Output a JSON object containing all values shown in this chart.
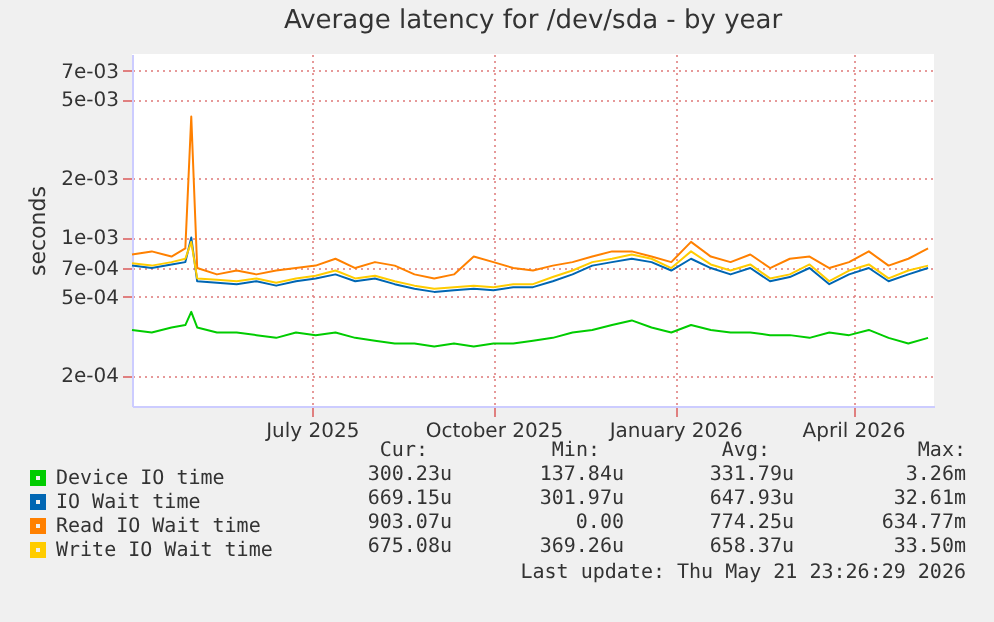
{
  "chart_data": {
    "type": "line",
    "title": "Average latency for /dev/sda - by year",
    "ylabel": "seconds",
    "x": [
      "2025-04-01",
      "2025-04-11",
      "2025-04-21",
      "2025-04-28",
      "2025-05-01",
      "2025-05-04",
      "2025-05-14",
      "2025-05-24",
      "2025-06-03",
      "2025-06-13",
      "2025-06-23",
      "2025-07-03",
      "2025-07-13",
      "2025-07-23",
      "2025-08-02",
      "2025-08-12",
      "2025-08-22",
      "2025-09-01",
      "2025-09-11",
      "2025-09-21",
      "2025-10-01",
      "2025-10-11",
      "2025-10-21",
      "2025-10-31",
      "2025-11-10",
      "2025-11-20",
      "2025-11-30",
      "2025-12-10",
      "2025-12-20",
      "2025-12-30",
      "2026-01-09",
      "2026-01-19",
      "2026-01-29",
      "2026-02-08",
      "2026-02-18",
      "2026-02-28",
      "2026-03-10",
      "2026-03-20",
      "2026-03-30",
      "2026-04-09",
      "2026-04-19",
      "2026-04-29",
      "2026-05-09"
    ],
    "series": [
      {
        "name": "Device IO time",
        "color": "#00cc00",
        "values": [
          0.00034,
          0.00033,
          0.00035,
          0.00036,
          0.00042,
          0.00035,
          0.00033,
          0.00033,
          0.00032,
          0.00031,
          0.00033,
          0.00032,
          0.00033,
          0.00031,
          0.0003,
          0.00029,
          0.00029,
          0.00028,
          0.00029,
          0.00028,
          0.00029,
          0.00029,
          0.0003,
          0.00031,
          0.00033,
          0.00034,
          0.00036,
          0.00038,
          0.00035,
          0.00033,
          0.00036,
          0.00034,
          0.00033,
          0.00033,
          0.00032,
          0.00032,
          0.00031,
          0.00033,
          0.00032,
          0.00034,
          0.00031,
          0.00029,
          0.00031
        ]
      },
      {
        "name": "IO Wait time",
        "color": "#0066b3",
        "values": [
          0.00072,
          0.0007,
          0.00073,
          0.00075,
          0.001,
          0.0006,
          0.00059,
          0.00058,
          0.0006,
          0.00057,
          0.0006,
          0.00062,
          0.00065,
          0.0006,
          0.00062,
          0.00058,
          0.00055,
          0.00053,
          0.00054,
          0.00055,
          0.00054,
          0.00056,
          0.00056,
          0.0006,
          0.00065,
          0.00072,
          0.00075,
          0.00078,
          0.00075,
          0.00068,
          0.00078,
          0.0007,
          0.00065,
          0.0007,
          0.0006,
          0.00063,
          0.0007,
          0.00058,
          0.00065,
          0.0007,
          0.0006,
          0.00065,
          0.0007
        ]
      },
      {
        "name": "Read IO Wait time",
        "color": "#ff8000",
        "values": [
          0.00082,
          0.00085,
          0.0008,
          0.00088,
          0.0041,
          0.0007,
          0.00065,
          0.00068,
          0.00065,
          0.00068,
          0.0007,
          0.00072,
          0.00078,
          0.0007,
          0.00075,
          0.00072,
          0.00065,
          0.00062,
          0.00065,
          0.0008,
          0.00075,
          0.0007,
          0.00068,
          0.00072,
          0.00075,
          0.0008,
          0.00085,
          0.00085,
          0.0008,
          0.00075,
          0.00095,
          0.0008,
          0.00075,
          0.00082,
          0.0007,
          0.00078,
          0.0008,
          0.0007,
          0.00075,
          0.00085,
          0.00072,
          0.00078,
          0.00088
        ]
      },
      {
        "name": "Write IO Wait time",
        "color": "#ffcc00",
        "values": [
          0.00074,
          0.00072,
          0.00075,
          0.00078,
          0.00095,
          0.00062,
          0.00061,
          0.0006,
          0.00062,
          0.00059,
          0.00062,
          0.00064,
          0.00068,
          0.00062,
          0.00064,
          0.0006,
          0.00057,
          0.00055,
          0.00056,
          0.00057,
          0.00056,
          0.00058,
          0.00058,
          0.00063,
          0.00068,
          0.00075,
          0.00078,
          0.00082,
          0.00078,
          0.0007,
          0.00085,
          0.00073,
          0.00068,
          0.00073,
          0.00062,
          0.00065,
          0.00073,
          0.0006,
          0.00068,
          0.00073,
          0.00062,
          0.00068,
          0.00072
        ]
      }
    ],
    "xlim": [
      "2025-04-01",
      "2026-05-12"
    ],
    "xticks": [
      {
        "value": "2025-07-01",
        "label": "July 2025"
      },
      {
        "value": "2025-10-01",
        "label": "October 2025"
      },
      {
        "value": "2026-01-01",
        "label": "January 2026"
      },
      {
        "value": "2026-04-01",
        "label": "April 2026"
      }
    ],
    "ylim": [
      0.00014,
      0.0085
    ],
    "log": true,
    "yticks": [
      {
        "value": 0.0002,
        "label": "2e-04"
      },
      {
        "value": 0.0005,
        "label": "5e-04"
      },
      {
        "value": 0.0007,
        "label": "7e-04"
      },
      {
        "value": 0.001,
        "label": "1e-03"
      },
      {
        "value": 0.002,
        "label": "2e-03"
      },
      {
        "value": 0.005,
        "label": "5e-03"
      },
      {
        "value": 0.007,
        "label": "7e-03"
      }
    ],
    "grid": true,
    "legend": "bottom",
    "marker": "none",
    "line_style": "solid",
    "annotations": [
      "Cur:",
      "Min:",
      "Avg:",
      "Max:",
      "300.23u",
      "137.84u",
      "331.79u",
      "3.26m",
      "669.15u",
      "301.97u",
      "647.93u",
      "32.61m",
      "903.07u",
      "0.00",
      "774.25u",
      "634.77m",
      "675.08u",
      "369.26u",
      "658.37u",
      "33.50m",
      "Last update: Thu May 21 23:26:29 2026"
    ]
  }
}
